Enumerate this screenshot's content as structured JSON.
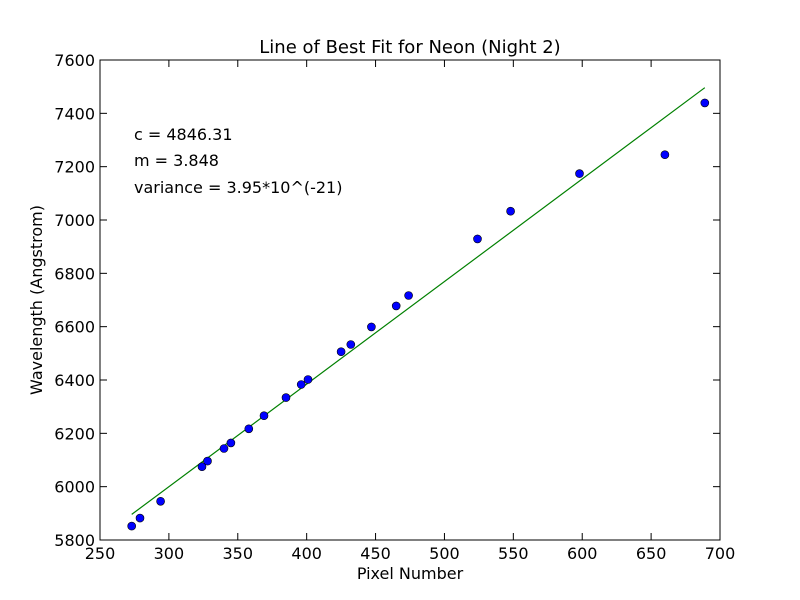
{
  "chart_data": {
    "type": "scatter",
    "title": "Line of Best Fit for Neon (Night 2)",
    "xlabel": "Pixel Number",
    "ylabel": "Wavelength (Angstrom)",
    "xlim": [
      250,
      700
    ],
    "ylim": [
      5800,
      7600
    ],
    "xticks": [
      "250",
      "300",
      "350",
      "400",
      "450",
      "500",
      "550",
      "600",
      "650",
      "700"
    ],
    "yticks": [
      "5800",
      "6000",
      "6200",
      "6400",
      "6600",
      "6800",
      "7000",
      "7200",
      "7400",
      "7600"
    ],
    "grid": false,
    "legend": "none",
    "annotations": [
      "c = 4846.31",
      "m = 3.848",
      "variance = 3.95*10^(-21)"
    ],
    "series": [
      {
        "kind": "scatter",
        "color": "#0000ff",
        "points": [
          [
            273,
            5852
          ],
          [
            279,
            5882
          ],
          [
            294,
            5945
          ],
          [
            324,
            6075
          ],
          [
            328,
            6096
          ],
          [
            340,
            6143
          ],
          [
            345,
            6164
          ],
          [
            358,
            6217
          ],
          [
            369,
            6266
          ],
          [
            385,
            6334
          ],
          [
            396,
            6383
          ],
          [
            401,
            6402
          ],
          [
            425,
            6506
          ],
          [
            432,
            6533
          ],
          [
            447,
            6599
          ],
          [
            465,
            6678
          ],
          [
            474,
            6717
          ],
          [
            524,
            6929
          ],
          [
            548,
            7033
          ],
          [
            598,
            7174
          ],
          [
            660,
            7245
          ],
          [
            689,
            7439
          ]
        ]
      },
      {
        "kind": "line",
        "color": "#008000",
        "points": [
          [
            273,
            5896
          ],
          [
            689,
            7496
          ]
        ]
      }
    ]
  }
}
